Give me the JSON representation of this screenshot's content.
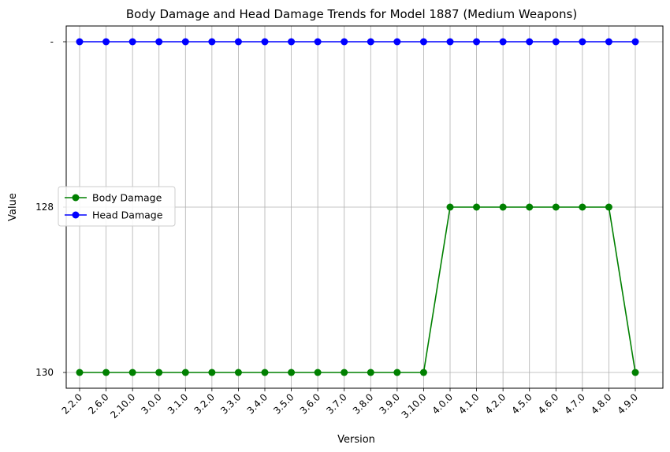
{
  "chart_data": {
    "type": "line",
    "title": "Body Damage and Head Damage Trends for Model 1887 (Medium Weapons)",
    "xlabel": "Version",
    "ylabel": "Value",
    "categories": [
      "2.2.0",
      "2.6.0",
      "2.10.0",
      "3.0.0",
      "3.1.0",
      "3.2.0",
      "3.3.0",
      "3.4.0",
      "3.5.0",
      "3.6.0",
      "3.7.0",
      "3.8.0",
      "3.9.0",
      "3.10.0",
      "4.0.0",
      "4.1.0",
      "4.2.0",
      "4.5.0",
      "4.6.0",
      "4.7.0",
      "4.8.0",
      "4.9.0"
    ],
    "y_categories": [
      "130",
      "128",
      "-"
    ],
    "series": [
      {
        "name": "Body Damage",
        "color": "#008000",
        "values": [
          "130",
          "130",
          "130",
          "130",
          "130",
          "130",
          "130",
          "130",
          "130",
          "130",
          "130",
          "130",
          "130",
          "130",
          "128",
          "128",
          "128",
          "128",
          "128",
          "128",
          "128",
          "130"
        ]
      },
      {
        "name": "Head Damage",
        "color": "#0000ff",
        "values": [
          "-",
          "-",
          "-",
          "-",
          "-",
          "-",
          "-",
          "-",
          "-",
          "-",
          "-",
          "-",
          "-",
          "-",
          "-",
          "-",
          "-",
          "-",
          "-",
          "-",
          "-",
          "-"
        ]
      }
    ],
    "grid": true,
    "legend_position": "center-left"
  }
}
